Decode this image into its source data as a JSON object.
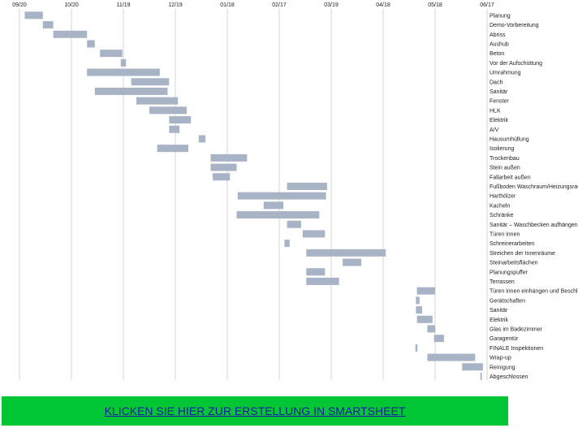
{
  "chart_data": {
    "type": "gantt",
    "x_axis_ticks": [
      "09/20",
      "10/20",
      "11/19",
      "12/19",
      "01/18",
      "02/17",
      "03/19",
      "04/18",
      "05/18",
      "06/17"
    ],
    "grid": true,
    "bar_color": "#a8b3c6",
    "grid_color": "#c8c8c8",
    "tasks": [
      {
        "name": "Planung",
        "start": 0.1,
        "end": 0.45
      },
      {
        "name": "Demo-Vorbereitung",
        "start": 0.45,
        "end": 0.65
      },
      {
        "name": "Abriss",
        "start": 0.65,
        "end": 1.3
      },
      {
        "name": "Aushub",
        "start": 1.3,
        "end": 1.45
      },
      {
        "name": "Beton",
        "start": 1.55,
        "end": 1.98
      },
      {
        "name": "Vor der Aufschüttung",
        "start": 1.95,
        "end": 2.05
      },
      {
        "name": "Umrahmung",
        "start": 1.3,
        "end": 2.7
      },
      {
        "name": "Dach",
        "start": 2.15,
        "end": 2.88
      },
      {
        "name": "Sanitär",
        "start": 1.45,
        "end": 2.85
      },
      {
        "name": "Fenster",
        "start": 2.25,
        "end": 3.05
      },
      {
        "name": "HLK",
        "start": 2.5,
        "end": 3.22
      },
      {
        "name": "Elektrik",
        "start": 2.88,
        "end": 3.3
      },
      {
        "name": "A/V",
        "start": 2.88,
        "end": 3.08
      },
      {
        "name": "Hausumhüllung",
        "start": 3.45,
        "end": 3.58
      },
      {
        "name": "Isolierung",
        "start": 2.65,
        "end": 3.25
      },
      {
        "name": "Trockenbau",
        "start": 3.68,
        "end": 4.38
      },
      {
        "name": "Stein außen",
        "start": 3.68,
        "end": 4.18
      },
      {
        "name": "Fallarbeit außen",
        "start": 3.72,
        "end": 4.05
      },
      {
        "name": "Fußboden Waschraum/Heizungsraum",
        "start": 5.15,
        "end": 5.92
      },
      {
        "name": "Harthölzer",
        "start": 4.2,
        "end": 5.9
      },
      {
        "name": "Kacheln",
        "start": 4.7,
        "end": 5.08
      },
      {
        "name": "Schränke",
        "start": 4.18,
        "end": 5.77
      },
      {
        "name": "Sanitär – Waschbecken aufhängen",
        "start": 5.15,
        "end": 5.42
      },
      {
        "name": "Türen innen",
        "start": 5.45,
        "end": 5.88
      },
      {
        "name": "Schreinerarbeiten",
        "start": 5.1,
        "end": 5.2
      },
      {
        "name": "Streichen der Innenräume",
        "start": 5.52,
        "end": 7.05
      },
      {
        "name": "Steinarbeitsflächen",
        "start": 6.22,
        "end": 6.58
      },
      {
        "name": "Planungspuffer",
        "start": 5.52,
        "end": 5.88
      },
      {
        "name": "Terrassen",
        "start": 5.52,
        "end": 6.15
      },
      {
        "name": "Türen innen einhängen und Beschläge",
        "start": 7.65,
        "end": 8.0
      },
      {
        "name": "Gerätschaften",
        "start": 7.63,
        "end": 7.7
      },
      {
        "name": "Sanitär",
        "start": 7.63,
        "end": 7.75
      },
      {
        "name": "Elektrik",
        "start": 7.65,
        "end": 7.95
      },
      {
        "name": "Glas im Badezimmer",
        "start": 7.85,
        "end": 8.0
      },
      {
        "name": "Garagentür",
        "start": 7.98,
        "end": 8.17
      },
      {
        "name": "FINALE Inspektionen",
        "start": 7.62,
        "end": 7.66
      },
      {
        "name": "Wrap-up",
        "start": 7.85,
        "end": 8.77
      },
      {
        "name": "Reinigung",
        "start": 8.52,
        "end": 8.92
      },
      {
        "name": "Abgeschlossen",
        "start": 8.87,
        "end": 8.9
      }
    ]
  },
  "cta": {
    "label": "KLICKEN SIE HIER ZUR ERSTELLUNG IN SMARTSHEET",
    "background": "#00c535",
    "text_color": "#1a1aa6"
  }
}
